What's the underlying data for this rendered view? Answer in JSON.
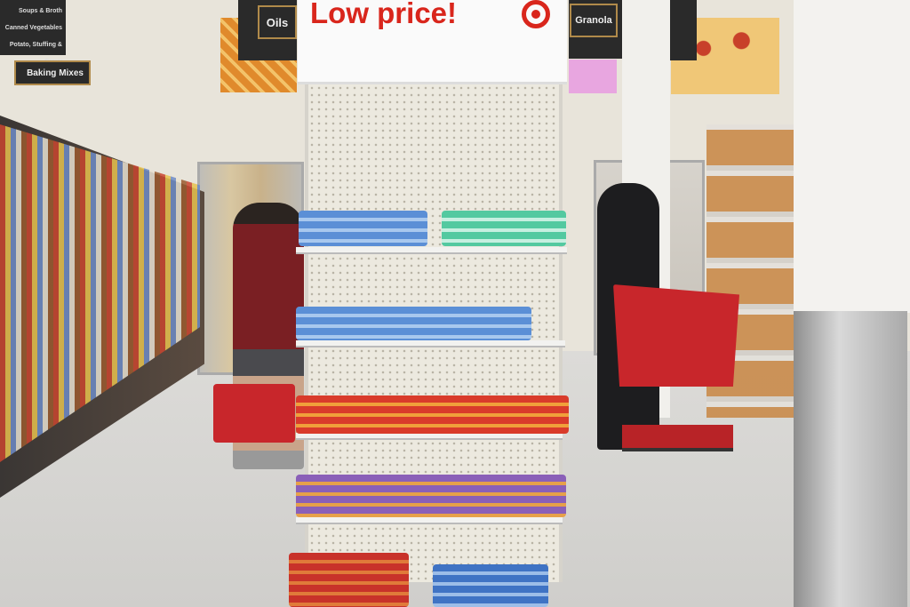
{
  "signs": {
    "aisle_left": [
      "Soups & Broth",
      "Canned Vegetables",
      "Potato, Stuffing & Gravy"
    ],
    "baking": "Baking Mixes",
    "oils": "Oils",
    "granola": "Granola",
    "endcap": "Low price!"
  },
  "colors": {
    "target_red": "#d9261c",
    "floor": "#d6d5d2",
    "cart": "#c8262b"
  }
}
